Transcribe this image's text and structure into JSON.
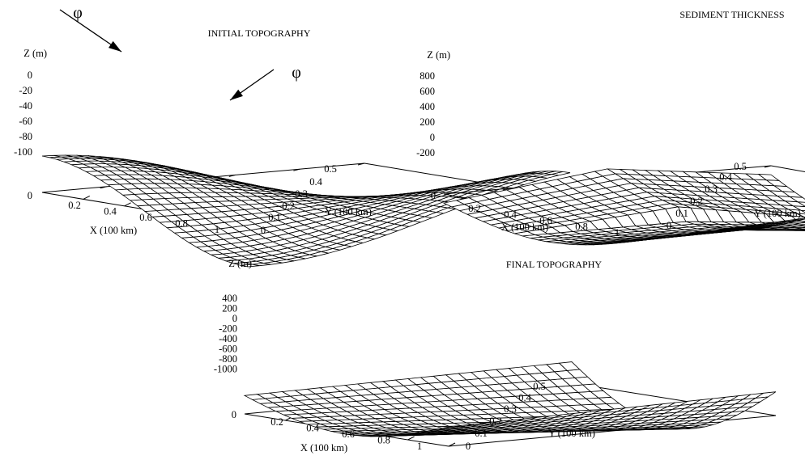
{
  "chart_data": [
    {
      "type": "surface",
      "title": "INITIAL TOPOGRAPHY",
      "xlabel": "X (100 km)",
      "ylabel": "Y (100 km)",
      "zlabel": "Z (m)",
      "xlim": [
        0,
        1
      ],
      "ylim": [
        0,
        0.5
      ],
      "zlim": [
        -100,
        0
      ],
      "x_ticks": [
        "0.2",
        "0.4",
        "0.6",
        "0.8",
        "1"
      ],
      "y_ticks": [
        "0",
        "0.1",
        "0.2",
        "0.3",
        "0.4",
        "0.5"
      ],
      "z_ticks": [
        "0",
        "-20",
        "-40",
        "-60",
        "-80",
        "-100"
      ],
      "base_tick": "0",
      "annotations": [
        "φ",
        "φ"
      ],
      "description_values": {
        "z_max": 0,
        "z_min": -100
      }
    },
    {
      "type": "surface",
      "title": "SEDIMENT THICKNESS",
      "xlabel": "X (100 km)",
      "ylabel": "Y (100 km)",
      "zlabel": "Z (m)",
      "xlim": [
        0,
        1
      ],
      "ylim": [
        0,
        0.5
      ],
      "zlim": [
        -200,
        800
      ],
      "x_ticks": [
        "0.2",
        "0.4",
        "0.6",
        "0.8",
        "1"
      ],
      "y_ticks": [
        "0",
        "0.1",
        "0.2",
        "0.3",
        "0.4",
        "0.5"
      ],
      "z_ticks": [
        "800",
        "600",
        "400",
        "200",
        "0",
        "-200"
      ],
      "base_tick": "0"
    },
    {
      "type": "surface",
      "title": "FINAL TOPOGRAPHY",
      "xlabel": "X (100 km)",
      "ylabel": "Y (100 km)",
      "zlabel": "Z (m)",
      "xlim": [
        0,
        1
      ],
      "ylim": [
        0,
        0.5
      ],
      "zlim": [
        -1000,
        400
      ],
      "x_ticks": [
        "0.2",
        "0.4",
        "0.6",
        "0.8",
        "1"
      ],
      "y_ticks": [
        "0",
        "0.1",
        "0.2",
        "0.3",
        "0.4",
        "0.5"
      ],
      "z_ticks": [
        "400",
        "200",
        "0",
        "-200",
        "-400",
        "-600",
        "-800",
        "-1000"
      ],
      "base_tick": "0"
    }
  ]
}
